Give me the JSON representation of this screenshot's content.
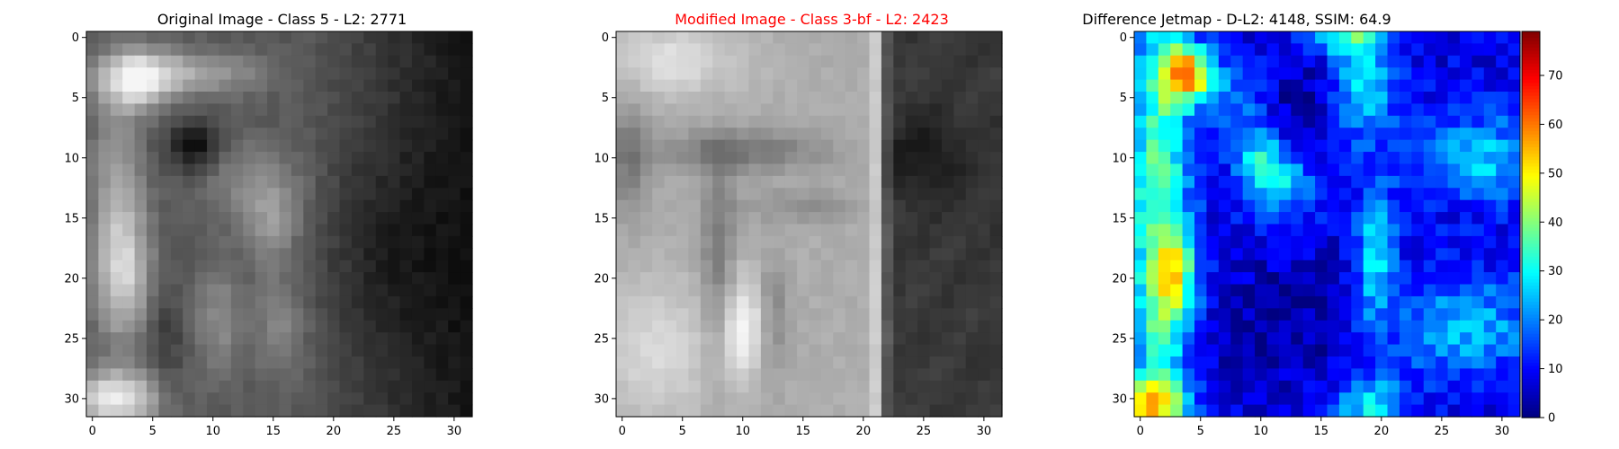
{
  "chart_data": [
    {
      "type": "heatmap",
      "title": "Original Image - Class 5 - L2: 2771",
      "title_color": "#000000",
      "colormap": "gray",
      "grid_size": [
        32,
        32
      ],
      "xlim": [
        -0.5,
        31.5
      ],
      "ylim": [
        31.5,
        -0.5
      ],
      "x_ticks": [
        0,
        5,
        10,
        15,
        20,
        25,
        30
      ],
      "y_ticks": [
        0,
        5,
        10,
        15,
        20,
        25,
        30
      ],
      "content": "blurred grayscale digit-like image, bright strokes on left, dark right side"
    },
    {
      "type": "heatmap",
      "title": "Modified Image - Class 3-bf - L2: 2423",
      "title_color": "#ff0000",
      "colormap": "gray",
      "grid_size": [
        32,
        32
      ],
      "xlim": [
        -0.5,
        31.5
      ],
      "ylim": [
        31.5,
        -0.5
      ],
      "x_ticks": [
        0,
        5,
        10,
        15,
        20,
        25,
        30
      ],
      "y_ticks": [
        0,
        5,
        10,
        15,
        20,
        25,
        30
      ],
      "content": "grayscale image with a '5'-like shape, bright left area, dark right band"
    },
    {
      "type": "heatmap",
      "title": "Difference Jetmap - D-L2: 4148, SSIM: 64.9",
      "title_color": "#000000",
      "colormap": "jet",
      "grid_size": [
        32,
        32
      ],
      "xlim": [
        -0.5,
        31.5
      ],
      "ylim": [
        31.5,
        -0.5
      ],
      "x_ticks": [
        0,
        5,
        10,
        15,
        20,
        25,
        30
      ],
      "y_ticks": [
        0,
        5,
        10,
        15,
        20,
        25,
        30
      ],
      "colorbar": {
        "range": [
          0,
          79
        ],
        "ticks": [
          0,
          10,
          20,
          30,
          40,
          50,
          60,
          70
        ]
      }
    }
  ]
}
